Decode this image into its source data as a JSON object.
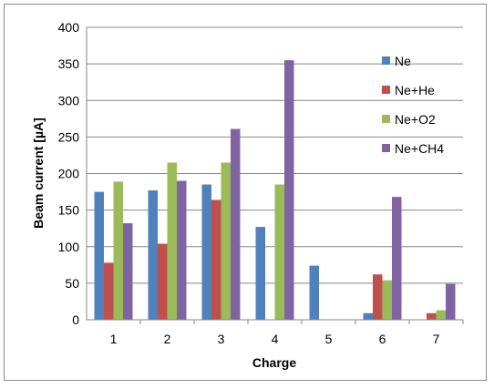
{
  "chart_data": {
    "type": "bar",
    "title": "",
    "xlabel": "Charge",
    "ylabel": "Beam current [µA]",
    "categories": [
      "1",
      "2",
      "3",
      "4",
      "5",
      "6",
      "7"
    ],
    "ylim": [
      0,
      400
    ],
    "yticks": [
      0,
      50,
      100,
      150,
      200,
      250,
      300,
      350,
      400
    ],
    "grid": true,
    "legend_position": "right",
    "series": [
      {
        "name": "Ne",
        "color": "#4f81bd",
        "values": [
          175,
          177,
          185,
          127,
          74,
          9,
          0
        ]
      },
      {
        "name": "Ne+He",
        "color": "#c0504d",
        "values": [
          78,
          104,
          164,
          0,
          0,
          62,
          9
        ]
      },
      {
        "name": "Ne+O2",
        "color": "#9bbb59",
        "values": [
          189,
          215,
          215,
          185,
          0,
          54,
          13
        ]
      },
      {
        "name": "Ne+CH4",
        "color": "#8064a2",
        "values": [
          132,
          190,
          261,
          355,
          0,
          168,
          49
        ]
      }
    ]
  }
}
